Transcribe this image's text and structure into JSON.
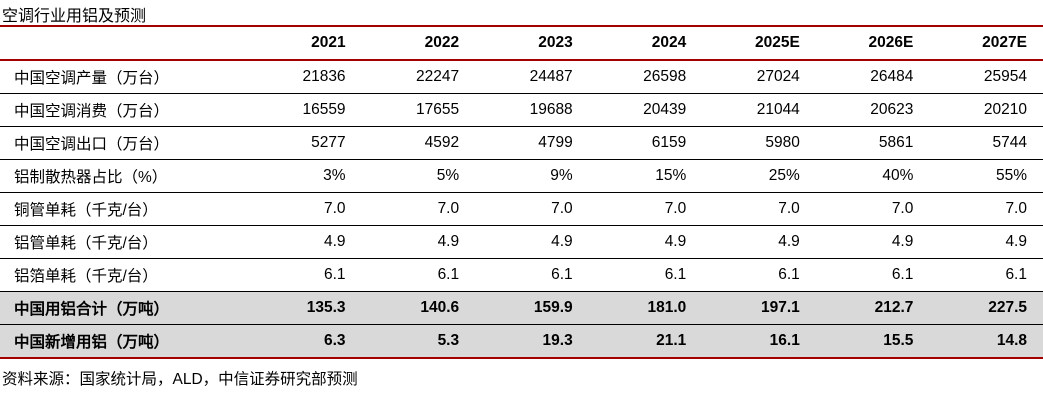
{
  "page_title": "空调行业用铝及预测",
  "colors": {
    "accent_red": "#A40000",
    "highlight_gray": "#D9D9D9",
    "row_divider_black": "#000000",
    "text_black": "#000000"
  },
  "chart_data": {
    "type": "table",
    "title": "空调行业用铝及预测",
    "columns": [
      "2021",
      "2022",
      "2023",
      "2024",
      "2025E",
      "2026E",
      "2027E"
    ],
    "rows": [
      {
        "label": "中国空调产量（万台）",
        "values": [
          "21836",
          "22247",
          "24487",
          "26598",
          "27024",
          "26484",
          "25954"
        ],
        "highlight": false
      },
      {
        "label": "中国空调消费（万台）",
        "values": [
          "16559",
          "17655",
          "19688",
          "20439",
          "21044",
          "20623",
          "20210"
        ],
        "highlight": false
      },
      {
        "label": "中国空调出口（万台）",
        "values": [
          "5277",
          "4592",
          "4799",
          "6159",
          "5980",
          "5861",
          "5744"
        ],
        "highlight": false
      },
      {
        "label": "铝制散热器占比（%）",
        "values": [
          "3%",
          "5%",
          "9%",
          "15%",
          "25%",
          "40%",
          "55%"
        ],
        "highlight": false
      },
      {
        "label": "铜管单耗（千克/台）",
        "values": [
          "7.0",
          "7.0",
          "7.0",
          "7.0",
          "7.0",
          "7.0",
          "7.0"
        ],
        "highlight": false
      },
      {
        "label": "铝管单耗（千克/台）",
        "values": [
          "4.9",
          "4.9",
          "4.9",
          "4.9",
          "4.9",
          "4.9",
          "4.9"
        ],
        "highlight": false
      },
      {
        "label": "铝箔单耗（千克/台）",
        "values": [
          "6.1",
          "6.1",
          "6.1",
          "6.1",
          "6.1",
          "6.1",
          "6.1"
        ],
        "highlight": false
      },
      {
        "label": "中国用铝合计（万吨）",
        "values": [
          "135.3",
          "140.6",
          "159.9",
          "181.0",
          "197.1",
          "212.7",
          "227.5"
        ],
        "highlight": true
      },
      {
        "label": "中国新增用铝（万吨）",
        "values": [
          "6.3",
          "5.3",
          "19.3",
          "21.1",
          "16.1",
          "15.5",
          "14.8"
        ],
        "highlight": true
      }
    ]
  },
  "footer": {
    "source": "资料来源：国家统计局，ALD，中信证券研究部预测"
  }
}
